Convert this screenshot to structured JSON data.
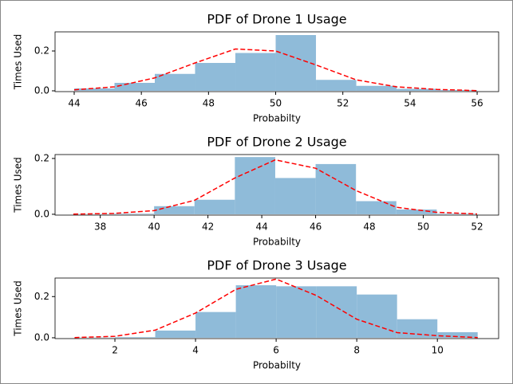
{
  "chart_data": [
    {
      "type": "histogram",
      "title": "PDF of Drone 1 Usage",
      "x_label": "Probabilty",
      "y_label": "Times Used",
      "bins": [
        44,
        45.2,
        46.4,
        47.6,
        48.8,
        50,
        51.2,
        52.4,
        53.6,
        54.8,
        56
      ],
      "values": [
        0.012,
        0.04,
        0.085,
        0.14,
        0.19,
        0.28,
        0.055,
        0.025,
        0.01,
        0.004
      ],
      "color": "#8fbbd9",
      "line": {
        "x": [
          44,
          45.2,
          46.4,
          47.6,
          48.8,
          50,
          51.2,
          52.4,
          53.6,
          54.8,
          56
        ],
        "values": [
          0.005,
          0.02,
          0.065,
          0.14,
          0.21,
          0.2,
          0.13,
          0.055,
          0.02,
          0.007,
          0.001
        ],
        "color": "#ff0000",
        "dashed": true
      },
      "xlim": [
        43.43,
        56.64
      ],
      "xticks": [
        44,
        46,
        48,
        50,
        52,
        54,
        56
      ],
      "ylim": [
        -0.004,
        0.296
      ],
      "yticks": [
        {
          "value": 0,
          "label": "0.0"
        },
        {
          "value": 0.2,
          "label": "0.2"
        }
      ]
    },
    {
      "type": "histogram",
      "title": "PDF of Drone 2 Usage",
      "x_label": "Probabilty",
      "y_label": "Times Used",
      "bins": [
        37,
        38.5,
        40,
        41.5,
        43,
        44.5,
        46,
        47.5,
        49,
        50.5,
        52
      ],
      "values": [
        0.001,
        0.002,
        0.029,
        0.052,
        0.205,
        0.13,
        0.18,
        0.047,
        0.017,
        0.002
      ],
      "color": "#8fbbd9",
      "line": {
        "x": [
          37,
          38.5,
          40,
          41.5,
          43,
          44.5,
          46,
          47.5,
          49,
          50.5,
          52
        ],
        "values": [
          0.0005,
          0.003,
          0.013,
          0.05,
          0.13,
          0.195,
          0.165,
          0.085,
          0.025,
          0.007,
          0.001
        ],
        "color": "#ff0000",
        "dashed": true
      },
      "xlim": [
        36.32,
        52.8
      ],
      "xticks": [
        38,
        40,
        42,
        44,
        46,
        48,
        50,
        52
      ],
      "ylim": [
        -0.003,
        0.214
      ],
      "yticks": [
        {
          "value": 0,
          "label": "0.0"
        },
        {
          "value": 0.2,
          "label": "0.2"
        }
      ]
    },
    {
      "type": "histogram",
      "title": "PDF of Drone 3 Usage",
      "x_label": "Probabilty",
      "y_label": "Times Used",
      "bins": [
        1,
        2,
        3,
        4,
        5,
        6,
        7,
        8,
        9,
        10,
        11
      ],
      "values": [
        0.001,
        0.003,
        0.035,
        0.125,
        0.255,
        0.25,
        0.25,
        0.21,
        0.09,
        0.027
      ],
      "color": "#8fbbd9",
      "line": {
        "x": [
          1,
          2,
          3,
          4,
          5,
          6,
          7,
          8,
          9,
          10,
          11
        ],
        "values": [
          0.001,
          0.007,
          0.037,
          0.12,
          0.235,
          0.285,
          0.205,
          0.09,
          0.025,
          0.01,
          0.001
        ],
        "color": "#ff0000",
        "dashed": true
      },
      "xlim": [
        0.515,
        11.52
      ],
      "xticks": [
        2,
        4,
        6,
        8,
        10
      ],
      "ylim": [
        -0.004,
        0.29
      ],
      "yticks": [
        {
          "value": 0,
          "label": "0.0"
        },
        {
          "value": 0.2,
          "label": "0.2"
        }
      ]
    }
  ]
}
